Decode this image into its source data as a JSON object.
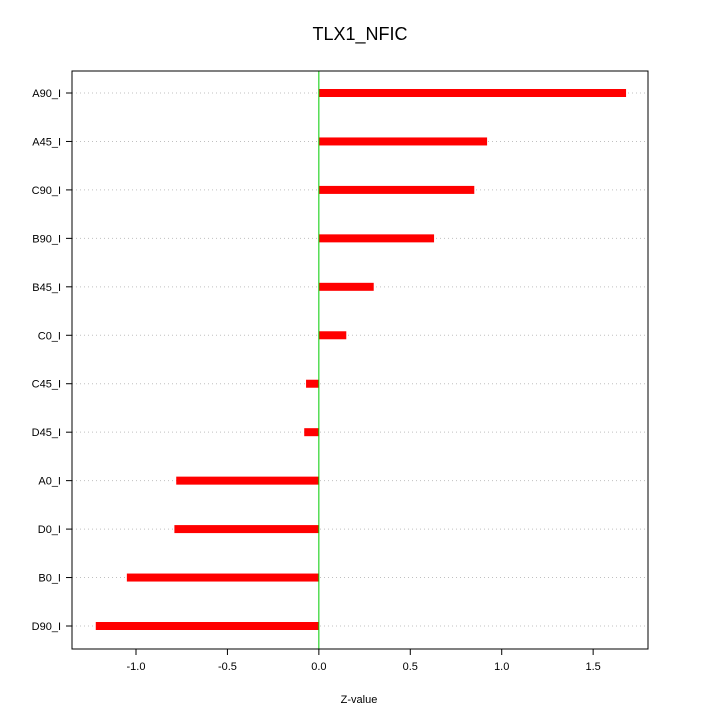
{
  "chart_data": {
    "type": "bar",
    "orientation": "horizontal",
    "title": "TLX1_NFIC",
    "xlabel": "Z-value",
    "ylabel": "",
    "xlim": [
      -1.35,
      1.8
    ],
    "xticks": [
      -1.0,
      -0.5,
      0.0,
      0.5,
      1.0,
      1.5
    ],
    "xtick_labels": [
      "-1.0",
      "-0.5",
      "0.0",
      "0.5",
      "1.0",
      "1.5"
    ],
    "categories": [
      "A90_I",
      "A45_I",
      "C90_I",
      "B90_I",
      "B45_I",
      "C0_I",
      "C45_I",
      "D45_I",
      "A0_I",
      "D0_I",
      "B0_I",
      "D90_I"
    ],
    "values": [
      1.68,
      0.92,
      0.85,
      0.63,
      0.3,
      0.15,
      -0.07,
      -0.08,
      -0.78,
      -0.79,
      -1.05,
      -1.22
    ],
    "grid": true,
    "colors": {
      "bar": "#ff0000",
      "zero_line": "#00cc00",
      "grid": "#c0c0c0",
      "frame": "#000000"
    }
  }
}
